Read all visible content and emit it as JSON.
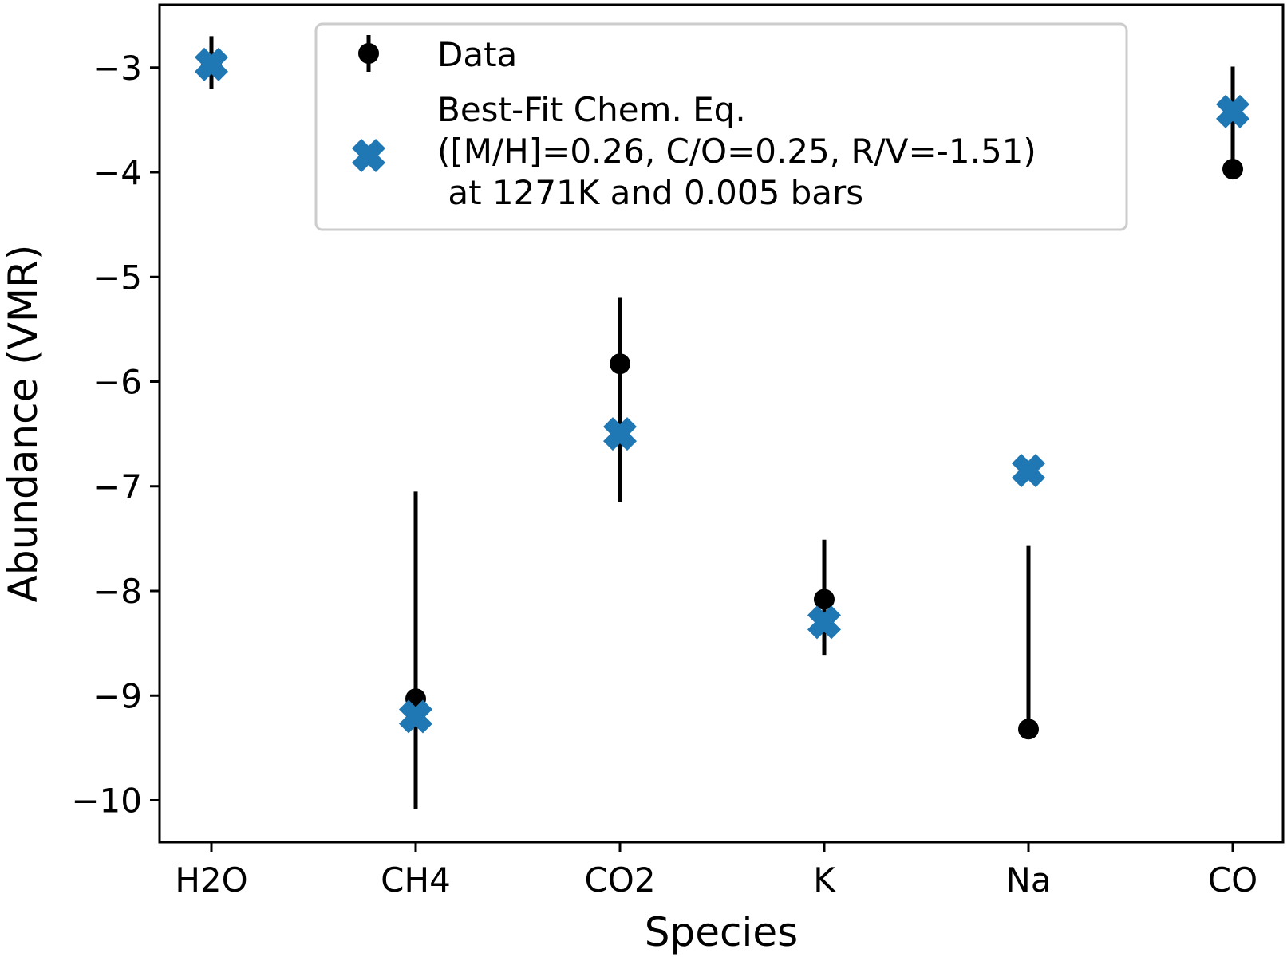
{
  "chart_data": {
    "type": "scatter",
    "title": "",
    "xlabel": "Species",
    "ylabel": "Abundance (VMR)",
    "categories": [
      "H2O",
      "CH4",
      "CO2",
      "K",
      "Na",
      "CO"
    ],
    "ylim": [
      -10.4,
      -2.4
    ],
    "yticks": [
      -10,
      -9,
      -8,
      -7,
      -6,
      -5,
      -4,
      -3
    ],
    "ytick_labels": [
      "−10",
      "−9",
      "−8",
      "−7",
      "−6",
      "−5",
      "−4",
      "−3"
    ],
    "grid": false,
    "legend_position": "top",
    "series": [
      {
        "name": "Data",
        "marker": "circle-errorbar",
        "color": "#000000",
        "values": [
          -2.95,
          -9.03,
          -5.83,
          -8.08,
          -9.32,
          -3.97
        ],
        "error_low": [
          0.25,
          1.05,
          1.32,
          0.53,
          null,
          null
        ],
        "error_high": [
          0.25,
          1.98,
          0.63,
          0.57,
          1.75,
          0.98
        ]
      },
      {
        "name": "Best-Fit Chem. Eq.\n([M/H]=0.26, C/O=0.25, R/V=-1.51)\n at 1271K and 0.005 bars",
        "marker": "X",
        "color": "#1f77b4",
        "values": [
          -2.97,
          -9.2,
          -6.5,
          -8.3,
          -6.85,
          -3.42
        ]
      }
    ]
  }
}
